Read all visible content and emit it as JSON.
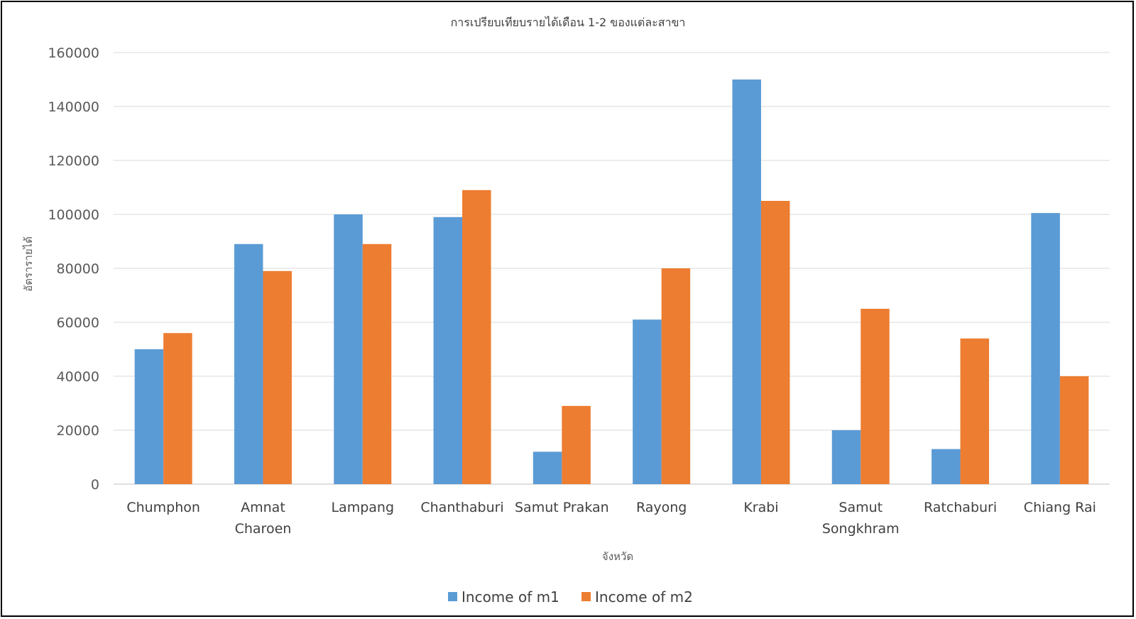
{
  "chart_data": {
    "type": "bar",
    "title": "การเปรียบเทียบรายได้เดือน 1-2 ของแต่ละสาขา",
    "xlabel": "จังหวัด",
    "ylabel": "อัตรารายได้",
    "ylim": [
      0,
      160000
    ],
    "yticks": [
      "0",
      "20000",
      "40000",
      "60000",
      "80000",
      "100000",
      "120000",
      "140000",
      "160000"
    ],
    "grid": true,
    "legend_position": "bottom",
    "categories": [
      "Chumphon",
      "Amnat Charoen",
      "Lampang",
      "Chanthaburi",
      "Samut Prakan",
      "Rayong",
      "Krabi",
      "Samut Songkhram",
      "Ratchaburi",
      "Chiang Rai"
    ],
    "category_lines": [
      [
        "Chumphon"
      ],
      [
        "Amnat",
        "Charoen"
      ],
      [
        "Lampang"
      ],
      [
        "Chanthaburi"
      ],
      [
        "Samut Prakan"
      ],
      [
        "Rayong"
      ],
      [
        "Krabi"
      ],
      [
        "Samut",
        "Songkhram"
      ],
      [
        "Ratchaburi"
      ],
      [
        "Chiang Rai"
      ]
    ],
    "series": [
      {
        "name": "Income of m1",
        "color": "#5B9BD5",
        "values": [
          50000,
          89000,
          100000,
          99000,
          12000,
          61000,
          150000,
          20000,
          13000,
          100500
        ]
      },
      {
        "name": "Income of m2",
        "color": "#ED7D31",
        "values": [
          56000,
          79000,
          89000,
          109000,
          29000,
          80000,
          105000,
          65000,
          54000,
          40000
        ]
      }
    ]
  }
}
